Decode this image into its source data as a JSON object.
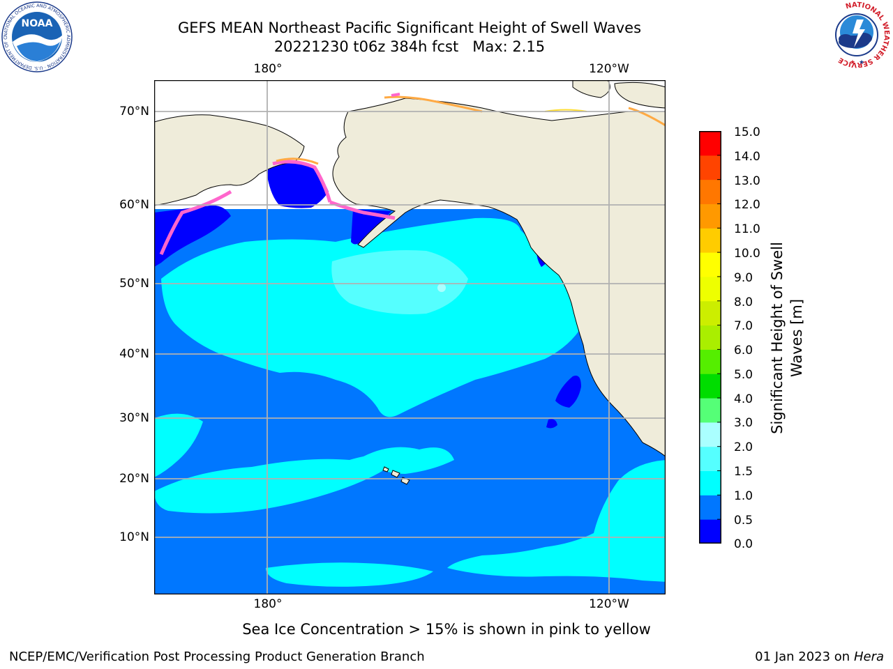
{
  "header": {
    "title_line1": "GEFS MEAN Northeast Pacific Significant Height of Swell Waves",
    "title_line2": "20221230 t06z 384h fcst   Max: 2.15"
  },
  "logos": {
    "noaa_text": "NOAA",
    "noaa_ring_text": "NATIONAL OCEANIC AND ATMOSPHERIC ADMINISTRATION · U.S. DEPARTMENT OF COMMERCE",
    "nws_ring_text": "NATIONAL WEATHER SERVICE"
  },
  "map": {
    "lon_labels": [
      "180°",
      "120°W"
    ],
    "lat_labels": [
      "70°N",
      "60°N",
      "50°N",
      "40°N",
      "30°N",
      "20°N",
      "10°N"
    ],
    "colors": {
      "land": "#efecda",
      "coast": "#000000",
      "grid": "#b0b0b0",
      "ice_pink": "#ff66cc",
      "ice_orange": "#ffaa44",
      "ice_yellow": "#ffdd33"
    }
  },
  "colorbar": {
    "label_line1": "Significant Height of Swell",
    "label_line2": "Waves [m]",
    "ticks": [
      "15.0",
      "14.0",
      "13.0",
      "12.0",
      "11.0",
      "10.0",
      "9.0",
      "8.0",
      "7.0",
      "6.0",
      "5.0",
      "4.0",
      "3.0",
      "2.0",
      "1.5",
      "1.0",
      "0.5",
      "0.0"
    ],
    "colors": [
      "#0000ff",
      "#0077ff",
      "#00ffff",
      "#55ffff",
      "#aaffff",
      "#55ff77",
      "#00dd00",
      "#55ee00",
      "#aaee00",
      "#ccee00",
      "#eeff00",
      "#ffff00",
      "#ffcc00",
      "#ff9900",
      "#ff7700",
      "#ff4400",
      "#ff0000"
    ]
  },
  "footer": {
    "note": "Sea Ice Concentration > 15% is shown in pink to yellow",
    "left": "NCEP/EMC/Verification Post Processing Product Generation Branch",
    "date": "01 Jan 2023 on ",
    "host": "Hera"
  }
}
